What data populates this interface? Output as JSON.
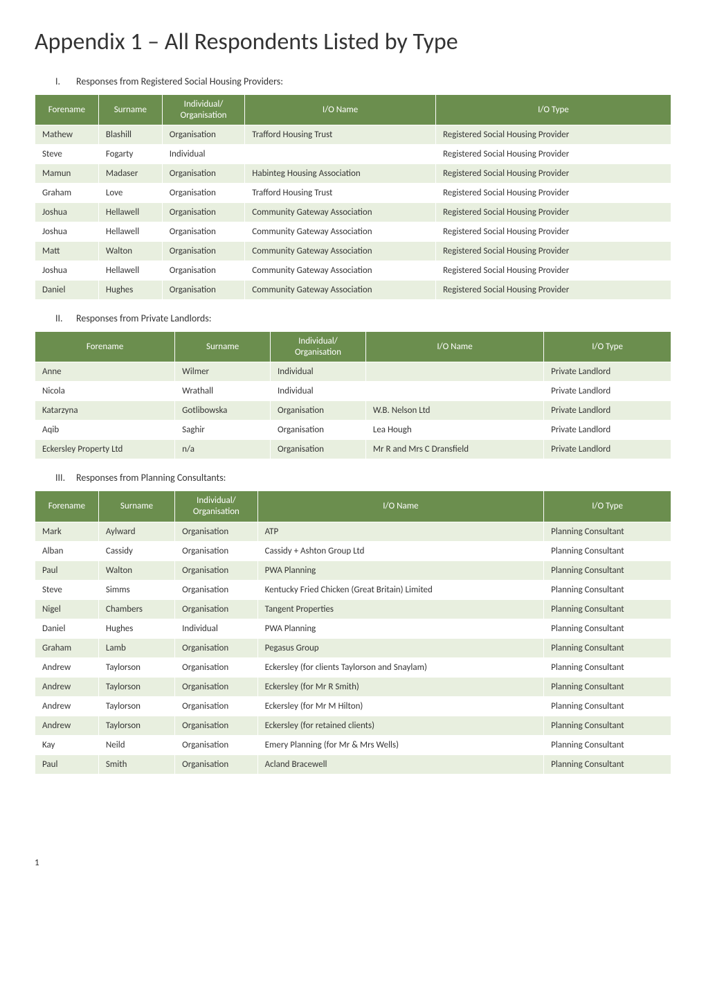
{
  "page": {
    "title": "Appendix 1 – All Respondents Listed by Type",
    "page_number": "1"
  },
  "colors": {
    "header_bg": "#6b8e4e",
    "header_text": "#ffffff",
    "row_odd": "#e8efdf",
    "row_even": "#ffffff",
    "cell_border": "#ffffff"
  },
  "typography": {
    "body_font": "Calibri",
    "title_size_pt": 26,
    "title_weight": 300,
    "section_size_pt": 11,
    "table_size_pt": 10
  },
  "sections": [
    {
      "roman": "I.",
      "label": "Responses from Registered Social Housing Providers:",
      "columns": [
        "Forename",
        "Surname",
        "Individual/\nOrganisation",
        "I/O Name",
        "I/O Type"
      ],
      "col_widths": [
        "10%",
        "10%",
        "13%",
        "30%",
        "37%"
      ],
      "rows": [
        [
          "Mathew",
          "Blashill",
          "Organisation",
          "Trafford Housing Trust",
          "Registered Social Housing Provider"
        ],
        [
          "Steve",
          "Fogarty",
          "Individual",
          "",
          "Registered Social Housing Provider"
        ],
        [
          "Mamun",
          "Madaser",
          "Organisation",
          "Habinteg Housing Association",
          "Registered Social Housing Provider"
        ],
        [
          "Graham",
          "Love",
          "Organisation",
          "Trafford Housing Trust",
          "Registered Social Housing Provider"
        ],
        [
          "Joshua",
          "Hellawell",
          "Organisation",
          "Community Gateway Association",
          "Registered Social Housing Provider"
        ],
        [
          "Joshua",
          "Hellawell",
          "Organisation",
          "Community Gateway Association",
          "Registered Social Housing Provider"
        ],
        [
          "Matt",
          "Walton",
          "Organisation",
          "Community Gateway Association",
          "Registered Social Housing Provider"
        ],
        [
          "Joshua",
          "Hellawell",
          "Organisation",
          "Community Gateway Association",
          "Registered Social Housing Provider"
        ],
        [
          "Daniel",
          "Hughes",
          "Organisation",
          "Community Gateway Association",
          "Registered Social Housing Provider"
        ]
      ]
    },
    {
      "roman": "II.",
      "label": "Responses from Private Landlords:",
      "columns": [
        "Forename",
        "Surname",
        "Individual/\nOrganisation",
        "I/O Name",
        "I/O Type"
      ],
      "col_widths": [
        "22%",
        "15%",
        "15%",
        "28%",
        "20%"
      ],
      "rows": [
        [
          "Anne",
          "Wilmer",
          "Individual",
          "",
          "Private Landlord"
        ],
        [
          "Nicola",
          "Wrathall",
          "Individual",
          "",
          "Private Landlord"
        ],
        [
          "Katarzyna",
          "Gotlibowska",
          "Organisation",
          "W.B. Nelson Ltd",
          "Private Landlord"
        ],
        [
          "Aqib",
          "Saghir",
          "Organisation",
          "Lea Hough",
          "Private Landlord"
        ],
        [
          "Eckersley Property Ltd",
          "n/a",
          "Organisation",
          "Mr R and Mrs C Dransfield",
          "Private Landlord"
        ]
      ]
    },
    {
      "roman": "III.",
      "label": "Responses from Planning Consultants:",
      "columns": [
        "Forename",
        "Surname",
        "Individual/\nOrganisation",
        "I/O Name",
        "I/O Type"
      ],
      "col_widths": [
        "10%",
        "12%",
        "13%",
        "45%",
        "20%"
      ],
      "rows": [
        [
          "Mark",
          "Aylward",
          "Organisation",
          "ATP",
          "Planning Consultant"
        ],
        [
          "Alban",
          "Cassidy",
          "Organisation",
          "Cassidy + Ashton Group Ltd",
          "Planning Consultant"
        ],
        [
          "Paul",
          "Walton",
          "Organisation",
          "PWA Planning",
          "Planning Consultant"
        ],
        [
          "Steve",
          "Simms",
          "Organisation",
          "Kentucky Fried Chicken (Great Britain) Limited",
          "Planning Consultant"
        ],
        [
          "Nigel",
          "Chambers",
          "Organisation",
          "Tangent Properties",
          "Planning Consultant"
        ],
        [
          "Daniel",
          "Hughes",
          "Individual",
          "PWA Planning",
          "Planning Consultant"
        ],
        [
          "Graham",
          "Lamb",
          "Organisation",
          "Pegasus Group",
          "Planning Consultant"
        ],
        [
          "Andrew",
          "Taylorson",
          "Organisation",
          "Eckersley (for clients Taylorson and Snaylam)",
          "Planning Consultant"
        ],
        [
          "Andrew",
          "Taylorson",
          "Organisation",
          "Eckersley (for Mr R Smith)",
          "Planning Consultant"
        ],
        [
          "Andrew",
          "Taylorson",
          "Organisation",
          "Eckersley (for Mr M Hilton)",
          "Planning Consultant"
        ],
        [
          "Andrew",
          "Taylorson",
          "Organisation",
          "Eckersley (for retained clients)",
          "Planning Consultant"
        ],
        [
          "Kay",
          "Neild",
          "Organisation",
          "Emery Planning (for Mr & Mrs Wells)",
          "Planning Consultant"
        ],
        [
          "Paul",
          "Smith",
          "Organisation",
          "Acland Bracewell",
          "Planning Consultant"
        ]
      ]
    }
  ]
}
